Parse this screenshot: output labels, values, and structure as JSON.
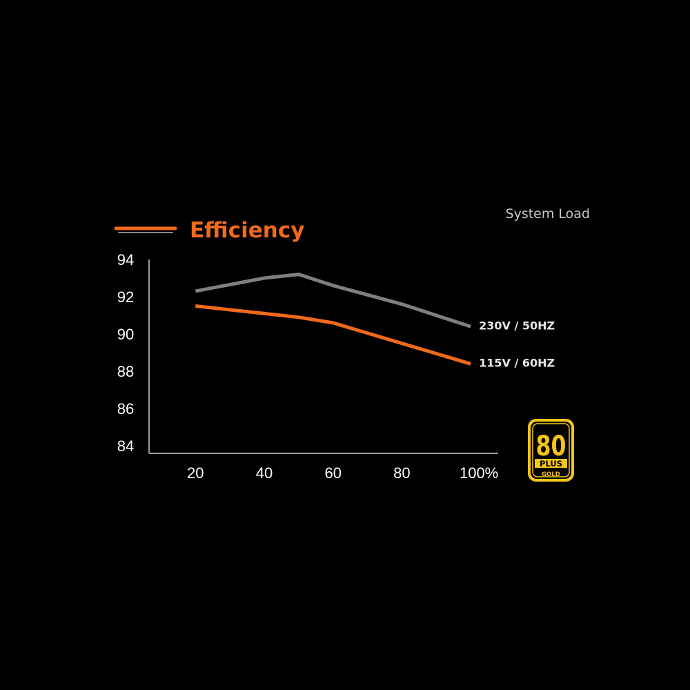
{
  "chart_data": {
    "type": "line",
    "title": "Efficiency",
    "xlabel": "System Load",
    "ylabel": "",
    "x": [
      20,
      40,
      50,
      60,
      80,
      100
    ],
    "x_ticks": [
      "20",
      "40",
      "60",
      "80",
      "100%"
    ],
    "x_tick_values": [
      20,
      40,
      60,
      80,
      100
    ],
    "y_ticks": [
      "94",
      "92",
      "90",
      "88",
      "86",
      "84"
    ],
    "y_tick_values": [
      94,
      92,
      90,
      88,
      86,
      84
    ],
    "xlim": [
      6.5,
      108
    ],
    "ylim": [
      83.6,
      94
    ],
    "grid": false,
    "legend": "none",
    "series": [
      {
        "name": "230V / 50HZ",
        "x": [
          20,
          40,
          50,
          60,
          80,
          100
        ],
        "values": [
          92.3,
          93.0,
          93.2,
          92.6,
          91.6,
          90.4
        ],
        "color": "#7f7f7f"
      },
      {
        "name": "115V / 60HZ",
        "x": [
          20,
          40,
          50,
          60,
          80,
          100
        ],
        "values": [
          91.5,
          91.1,
          90.9,
          90.6,
          89.5,
          88.4
        ],
        "color": "#f26a1b"
      }
    ],
    "accent_color": "#f26a1b",
    "axis_color": "#9a9a9a"
  },
  "badge": {
    "number": "80",
    "plus": "PLUS",
    "tier": "GOLD",
    "color": "#f5c518"
  }
}
